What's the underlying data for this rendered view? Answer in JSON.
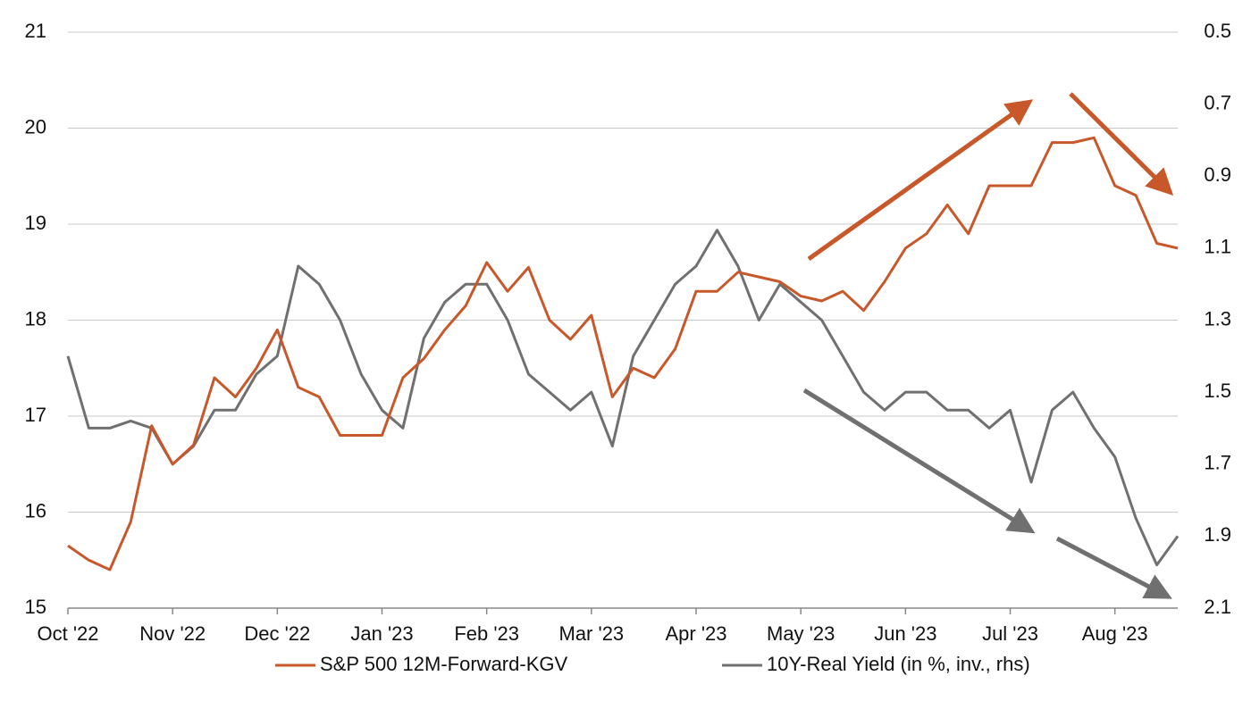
{
  "chart_data": {
    "type": "line",
    "categories": [
      "Oct '22",
      null,
      null,
      null,
      null,
      "Nov '22",
      null,
      null,
      null,
      null,
      "Dec '22",
      null,
      null,
      null,
      null,
      "Jan '23",
      null,
      null,
      null,
      null,
      "Feb '23",
      null,
      null,
      null,
      null,
      "Mar '23",
      null,
      null,
      null,
      null,
      "Apr '23",
      null,
      null,
      null,
      null,
      "May '23",
      null,
      null,
      null,
      null,
      "Jun '23",
      null,
      null,
      null,
      null,
      "Jul '23",
      null,
      null,
      null,
      null,
      "Aug '23",
      null,
      null,
      null
    ],
    "series": [
      {
        "name": "S&P 500 12M-Forward-KGV",
        "color": "#c8582a",
        "axis": "y",
        "values": [
          15.65,
          15.5,
          15.4,
          15.9,
          16.9,
          16.5,
          16.7,
          17.4,
          17.2,
          17.5,
          17.9,
          17.3,
          17.2,
          16.8,
          16.8,
          16.8,
          17.4,
          17.6,
          17.9,
          18.15,
          18.6,
          18.3,
          18.55,
          18.0,
          17.8,
          18.05,
          17.2,
          17.5,
          17.4,
          17.7,
          18.3,
          18.3,
          18.5,
          18.45,
          18.4,
          18.25,
          18.2,
          18.3,
          18.1,
          18.4,
          18.75,
          18.9,
          19.2,
          18.9,
          19.4,
          19.4,
          19.4,
          19.85,
          19.85,
          19.9,
          19.4,
          19.3,
          18.8,
          18.75
        ]
      },
      {
        "name": "10Y-Real Yield (in %, inv., rhs)",
        "color": "#707070",
        "axis": "y2",
        "values": [
          1.4,
          1.6,
          1.6,
          1.58,
          1.6,
          1.7,
          1.65,
          1.55,
          1.55,
          1.45,
          1.4,
          1.15,
          1.2,
          1.3,
          1.45,
          1.55,
          1.6,
          1.35,
          1.25,
          1.2,
          1.2,
          1.3,
          1.45,
          1.5,
          1.55,
          1.5,
          1.65,
          1.4,
          1.3,
          1.2,
          1.15,
          1.05,
          1.15,
          1.3,
          1.2,
          1.25,
          1.3,
          1.4,
          1.5,
          1.55,
          1.5,
          1.5,
          1.55,
          1.55,
          1.6,
          1.55,
          1.75,
          1.55,
          1.5,
          1.6,
          1.68,
          1.85,
          1.98,
          1.9
        ]
      }
    ],
    "ylim": [
      15,
      21
    ],
    "yticks": [
      15,
      16,
      17,
      18,
      19,
      20,
      21
    ],
    "y2lim": [
      2.1,
      0.5
    ],
    "y2ticks": [
      2.1,
      1.9,
      1.7,
      1.5,
      1.3,
      1.1,
      0.9,
      0.7,
      0.5
    ],
    "grid": true,
    "legend": "bottom"
  }
}
